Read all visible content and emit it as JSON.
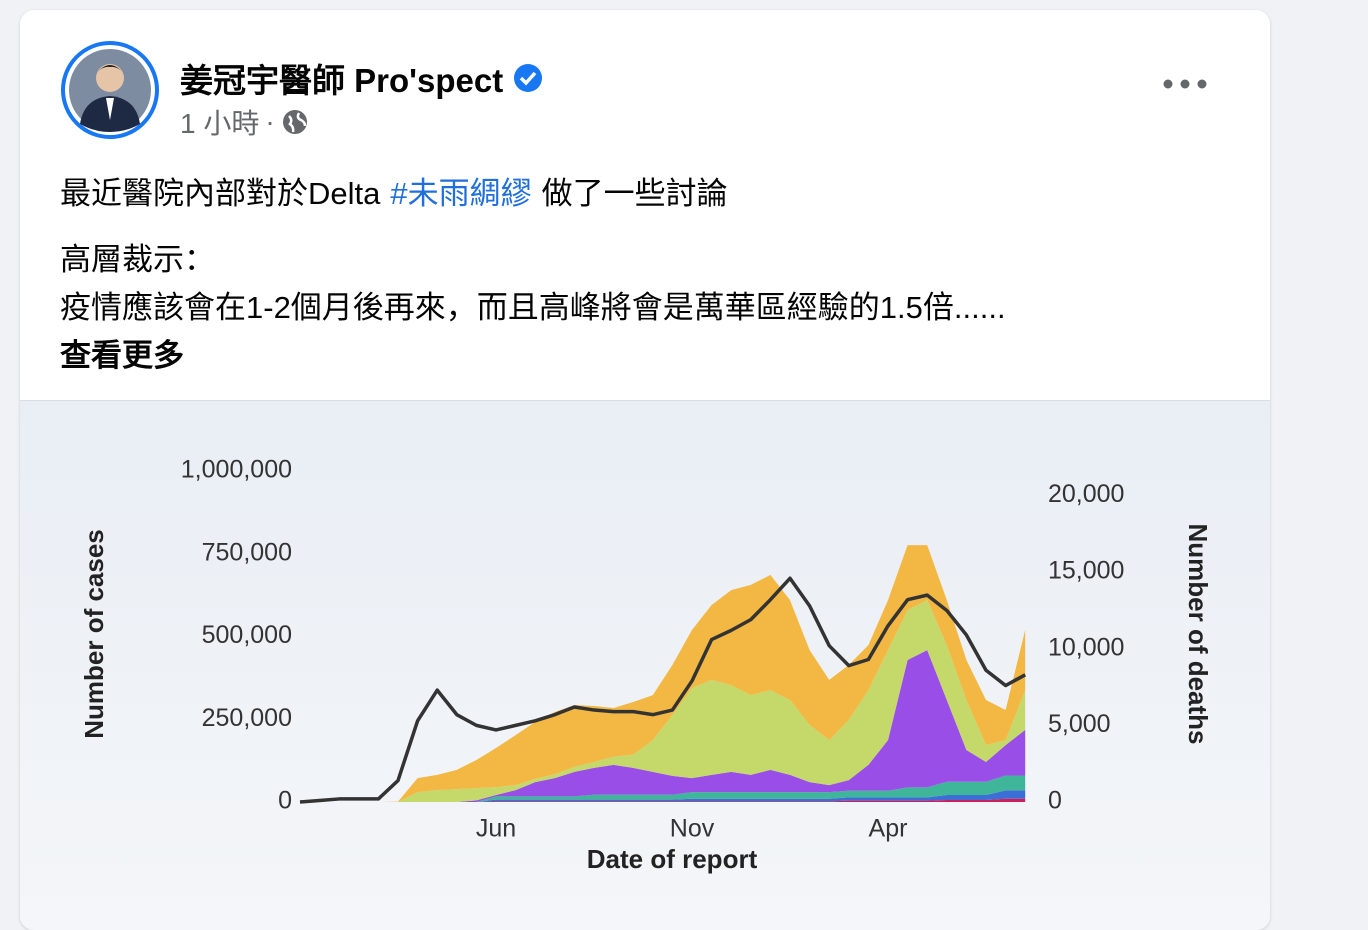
{
  "post": {
    "author": "姜冠宇醫師 Pro'spect",
    "time": "1 小時",
    "separator": "·",
    "message": {
      "intro": "最近醫院內部對於Delta",
      "hashtag": "#未雨綢繆",
      "intro_end": "做了一些討論",
      "heading": "高層裁示：",
      "body": "疫情應該會在1-2個月後再來，而且高峰將會是萬華區經驗的1.5倍......",
      "see_more": "查看更多"
    }
  },
  "chart_data": {
    "type": "area",
    "stacked": true,
    "grid": false,
    "xlabel": "Date of report",
    "ylabel": "Number of cases",
    "y2label": "Number of deaths",
    "categories": [
      null,
      null,
      null,
      null,
      null,
      null,
      null,
      null,
      null,
      null,
      "Jun",
      null,
      null,
      null,
      null,
      null,
      null,
      null,
      null,
      null,
      "Nov",
      null,
      null,
      null,
      null,
      null,
      null,
      null,
      null,
      null,
      "Apr",
      null,
      null,
      null,
      null,
      null,
      null,
      null
    ],
    "ylim": [
      0,
      1000000
    ],
    "yticks": [
      0,
      {
        "value": 250000,
        "label": "250,000"
      },
      {
        "value": 500000,
        "label": "500,000"
      },
      {
        "value": 750000,
        "label": "750,000"
      },
      {
        "value": 1000000,
        "label": "1,000,000"
      }
    ],
    "y2lim": [
      0,
      21600
    ],
    "y2ticks": [
      0,
      {
        "value": 5000,
        "label": "5,000"
      },
      {
        "value": 10000,
        "label": "10,000"
      },
      {
        "value": 15000,
        "label": "15,000"
      },
      {
        "value": 20000,
        "label": "20,000"
      }
    ],
    "series": [
      {
        "color": "#cc1f5a",
        "values": [
          0,
          0,
          0,
          0,
          0,
          0,
          0,
          0,
          0,
          0,
          2000,
          2000,
          2000,
          2000,
          2000,
          2000,
          2000,
          2000,
          2000,
          2000,
          2000,
          2000,
          2000,
          2000,
          2000,
          2000,
          2000,
          2000,
          4000,
          4000,
          4000,
          4000,
          4000,
          6000,
          6000,
          6000,
          10000,
          10000
        ]
      },
      {
        "color": "#3b6fd6",
        "values": [
          0,
          0,
          0,
          0,
          0,
          0,
          0,
          0,
          0,
          0,
          5000,
          5000,
          5000,
          5000,
          5000,
          5000,
          5000,
          5000,
          5000,
          5000,
          8000,
          8000,
          8000,
          8000,
          8000,
          8000,
          8000,
          8000,
          10000,
          10000,
          10000,
          10000,
          10000,
          15000,
          15000,
          15000,
          25000,
          25000
        ]
      },
      {
        "color": "#3fb59a",
        "values": [
          0,
          0,
          0,
          0,
          0,
          0,
          0,
          0,
          0,
          0,
          10000,
          10000,
          10000,
          10000,
          10000,
          15000,
          15000,
          15000,
          15000,
          15000,
          20000,
          20000,
          20000,
          20000,
          20000,
          20000,
          20000,
          20000,
          20000,
          20000,
          20000,
          30000,
          30000,
          40000,
          40000,
          40000,
          45000,
          45000
        ]
      },
      {
        "color": "#9a4ee8",
        "values": [
          0,
          0,
          0,
          0,
          0,
          0,
          0,
          0,
          0,
          5000,
          4000,
          19000,
          43000,
          55000,
          74000,
          81000,
          90000,
          81000,
          69000,
          57000,
          42000,
          52000,
          61000,
          52000,
          67000,
          52000,
          30000,
          21000,
          32000,
          78000,
          153000,
          385000,
          415000,
          247000,
          96000,
          60000,
          92000,
          138000
        ]
      },
      {
        "color": "#c5d96b",
        "values": [
          0,
          0,
          0,
          0,
          0,
          0,
          30000,
          36000,
          39000,
          37000,
          24000,
          15000,
          10000,
          12000,
          15000,
          18000,
          25000,
          40000,
          96000,
          184000,
          272000,
          287000,
          262000,
          241000,
          241000,
          226000,
          173000,
          136000,
          182000,
          226000,
          272000,
          151000,
          151000,
          166000,
          151000,
          51000,
          15000,
          120000
        ]
      },
      {
        "color": "#f2b843",
        "values": [
          0,
          0,
          0,
          0,
          0,
          1000,
          42000,
          46000,
          58000,
          85000,
          118000,
          151000,
          172000,
          188000,
          187000,
          169000,
          147000,
          159000,
          136000,
          151000,
          176000,
          226000,
          287000,
          333000,
          348000,
          302000,
          226000,
          182000,
          166000,
          136000,
          151000,
          196000,
          166000,
          136000,
          121000,
          136000,
          91000,
          182000
        ]
      },
      {
        "type": "line",
        "axis": "y2",
        "color": "#333333",
        "values": [
          0,
          100,
          200,
          200,
          200,
          1400,
          5300,
          7300,
          5700,
          5000,
          4700,
          5000,
          5300,
          5700,
          6200,
          6000,
          5900,
          5900,
          5700,
          6000,
          7900,
          10600,
          11200,
          11900,
          13200,
          14600,
          12800,
          10200,
          8900,
          9300,
          11500,
          13200,
          13500,
          12500,
          10900,
          8600,
          7600,
          8300
        ]
      }
    ]
  }
}
